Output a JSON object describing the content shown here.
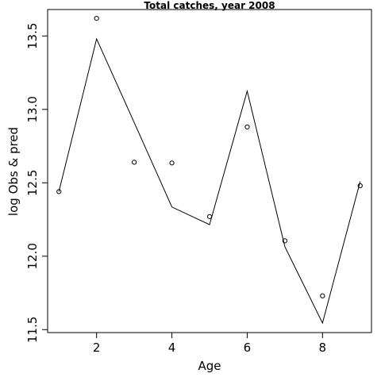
{
  "chart_data": {
    "type": "scatter+line",
    "title": "Total catches, year 2008",
    "xlabel": "Age",
    "ylabel": "log Obs & pred",
    "xlim": [
      0.7,
      9.3
    ],
    "ylim": [
      11.48,
      13.68
    ],
    "xticks": [
      2,
      4,
      6,
      8
    ],
    "yticks": [
      11.5,
      12.0,
      12.5,
      13.0,
      13.5
    ],
    "xtick_labels": [
      "2",
      "4",
      "6",
      "8"
    ],
    "ytick_labels": [
      "11.5",
      "12.0",
      "12.5",
      "13.0",
      "13.5"
    ],
    "series": [
      {
        "kind": "points",
        "x": [
          1,
          2,
          3,
          4,
          5,
          6,
          7,
          8,
          9
        ],
        "y": [
          12.44,
          13.62,
          12.64,
          12.635,
          12.27,
          12.88,
          12.105,
          11.73,
          12.48
        ]
      },
      {
        "kind": "line",
        "x": [
          1,
          2,
          3,
          4,
          5,
          6,
          7,
          8,
          9
        ],
        "y": [
          12.44,
          13.48,
          12.91,
          12.335,
          12.215,
          13.125,
          12.065,
          11.545,
          12.51
        ]
      }
    ],
    "grid": false
  }
}
